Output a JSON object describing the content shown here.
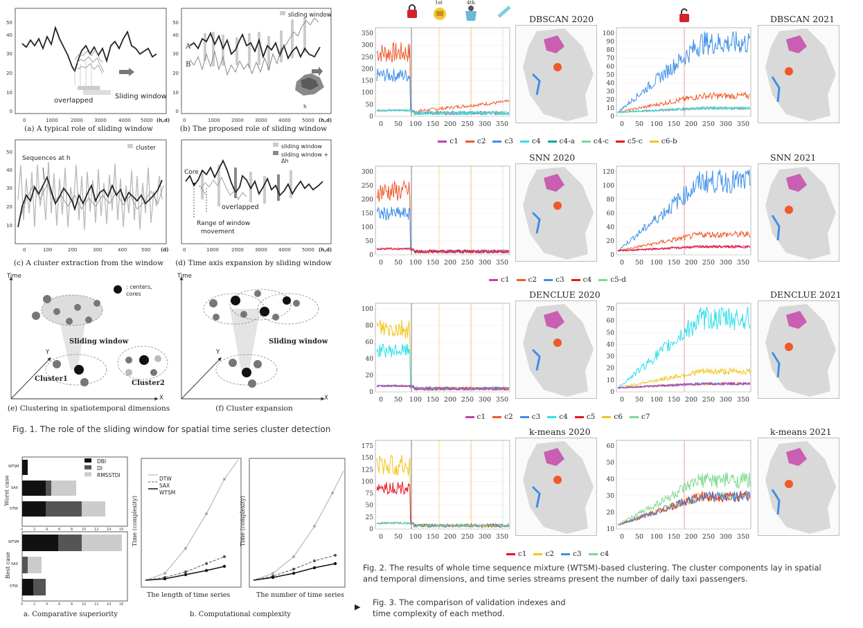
{
  "fig1": {
    "caption": "Fig. 1. The role of the sliding window for spatial time series cluster detection",
    "panel_a": {
      "caption": "(a) A typical role of sliding window",
      "annotations": [
        "overlapped",
        "Sliding window"
      ],
      "x_ticks": [
        "0",
        "1000",
        "2000",
        "3000",
        "4000",
        "5000"
      ],
      "x_unit": "(h,d)",
      "y_ticks": [
        "0",
        "10",
        "20",
        "30",
        "40",
        "50"
      ]
    },
    "panel_b": {
      "caption": "(b) The proposed role of sliding window",
      "legend": "sliding window",
      "labels": [
        "A",
        "B",
        "h"
      ],
      "x_ticks": [
        "0",
        "1000",
        "2000",
        "3000",
        "4000",
        "5000"
      ],
      "x_unit": "(h,d)",
      "y_ticks": [
        "0",
        "10",
        "20",
        "30",
        "40",
        "50"
      ]
    },
    "panel_c": {
      "caption": "(c) A cluster extraction from the window",
      "legend": "cluster",
      "annotation": "Sequences at h",
      "x_ticks": [
        "0",
        "100",
        "200",
        "300",
        "400",
        "500"
      ],
      "x_unit": "(d)",
      "y_ticks": [
        "10",
        "20",
        "30",
        "40",
        "50"
      ]
    },
    "panel_d": {
      "caption": "(d) Time axis expansion by sliding window",
      "legend": [
        "sliding window",
        "sliding window + Δh"
      ],
      "annotations": [
        "Core",
        "overlapped",
        "Range of window",
        "movement"
      ],
      "x_ticks": [
        "0",
        "1000",
        "2000",
        "3000",
        "4000",
        "5000"
      ],
      "x_unit": "(h,d)"
    },
    "panel_e": {
      "caption": "(e) Clustering in spatiotemporal dimensions",
      "axis": [
        "Time",
        "Y",
        "X"
      ],
      "legend": ": centers,\ncores",
      "labels": [
        "Sliding window",
        "Cluster1",
        "Cluster2"
      ]
    },
    "panel_f": {
      "caption": "(f) Cluster expansion",
      "axis": [
        "Time",
        "Y",
        "X"
      ],
      "labels": [
        "Sliding window"
      ]
    }
  },
  "fig2": {
    "caption_line1": "Fig. 2. The results of whole time sequence mixture (WTSM)-based clustering. The cluster components lay in spatial",
    "caption_line2": "and temporal dimensions, and time series streams present the number of daily taxi passengers.",
    "markers": [
      "1st",
      "4th"
    ],
    "x_ticks": [
      "0",
      "50",
      "100",
      "150",
      "200",
      "250",
      "300",
      "350"
    ],
    "rows": [
      {
        "title_2020": "DBSCAN 2020",
        "title_2021": "DBSCAN 2021",
        "y_ticks_left": [
          "0",
          "50",
          "100",
          "150",
          "200",
          "250",
          "300",
          "350"
        ],
        "y_ticks_right": [
          "0",
          "10",
          "20",
          "30",
          "40",
          "50",
          "60",
          "70",
          "80",
          "90",
          "100"
        ],
        "legend": [
          {
            "label": "c1",
            "color": "#c43fa8"
          },
          {
            "label": "c2",
            "color": "#ee5a2a"
          },
          {
            "label": "c3",
            "color": "#3d8ee8"
          },
          {
            "label": "c4",
            "color": "#2fe0ea"
          },
          {
            "label": "c4-a",
            "color": "#16a39b"
          },
          {
            "label": "c4-c",
            "color": "#7bd88f"
          },
          {
            "label": "c5-c",
            "color": "#e8141c"
          },
          {
            "label": "c6-b",
            "color": "#f0c419"
          }
        ]
      },
      {
        "title_2020": "SNN 2020",
        "title_2021": "SNN 2021",
        "y_ticks_left": [
          "0",
          "50",
          "100",
          "150",
          "200",
          "250",
          "300"
        ],
        "y_ticks_right": [
          "0",
          "20",
          "40",
          "60",
          "80",
          "100",
          "120"
        ],
        "legend": [
          {
            "label": "c1",
            "color": "#c43fa8"
          },
          {
            "label": "c2",
            "color": "#ee5a2a"
          },
          {
            "label": "c3",
            "color": "#3d8ee8"
          },
          {
            "label": "c4",
            "color": "#e8141c"
          },
          {
            "label": "c5-d",
            "color": "#7bd88f"
          }
        ]
      },
      {
        "title_2020": "DENCLUE 2020",
        "title_2021": "DENCLUE 2021",
        "y_ticks_left": [
          "0",
          "20",
          "40",
          "60",
          "80",
          "100"
        ],
        "y_ticks_right": [
          "0",
          "10",
          "20",
          "30",
          "40",
          "50",
          "60",
          "70"
        ],
        "legend": [
          {
            "label": "c1",
            "color": "#c43fa8"
          },
          {
            "label": "c2",
            "color": "#ee5a2a"
          },
          {
            "label": "c3",
            "color": "#3d8ee8"
          },
          {
            "label": "c4",
            "color": "#2fe0ea"
          },
          {
            "label": "c5",
            "color": "#e8141c"
          },
          {
            "label": "c6",
            "color": "#f0c419"
          },
          {
            "label": "c7",
            "color": "#7bd88f"
          }
        ]
      },
      {
        "title_2020": "k-means 2020",
        "title_2021": "k-means 2021",
        "y_ticks_left": [
          "0",
          "25",
          "50",
          "75",
          "100",
          "125",
          "150",
          "175"
        ],
        "y_ticks_right": [
          "10",
          "20",
          "30",
          "40",
          "50",
          "60"
        ],
        "legend": [
          {
            "label": "c1",
            "color": "#e8141c"
          },
          {
            "label": "c2",
            "color": "#f0c419"
          },
          {
            "label": "c3",
            "color": "#3d8ee8"
          },
          {
            "label": "c4",
            "color": "#7bd88f"
          }
        ]
      }
    ]
  },
  "fig3": {
    "caption_line1": "Fig. 3. The comparison of validation indexes and",
    "caption_line2": "time complexity of each method.",
    "arrow": "▶",
    "panel_a": {
      "caption": "a. Comparative superiority",
      "legend": [
        "DBI",
        "DI",
        "RMSSTDI"
      ],
      "worst_label": "Worst case",
      "best_label": "Best case",
      "categories_worst": [
        "WTSM",
        "SAX",
        "DTW"
      ],
      "categories_best": [
        "WTSM",
        "SAX",
        "DTW"
      ],
      "x_ticks": [
        "0",
        "2",
        "4",
        "6",
        "8",
        "10",
        "12",
        "14",
        "16"
      ]
    },
    "panel_b": {
      "caption": "b. Computational complexity",
      "ylabel": "Time (complexity)",
      "legend": [
        "DTW",
        "SAX",
        "WTSM"
      ],
      "xlabel_left": "The length of time series",
      "xlabel_right": "The number of time series"
    }
  }
}
